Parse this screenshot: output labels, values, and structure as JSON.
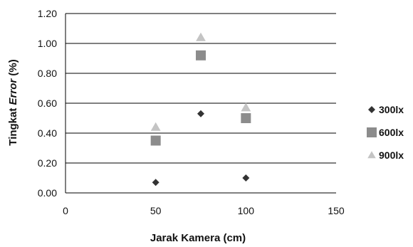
{
  "chart_data": {
    "type": "scatter",
    "title": "",
    "xlabel": "Jarak Kamera (cm)",
    "ylabel_parts": [
      "Tingkat ",
      "Error",
      " (%)"
    ],
    "xlim": [
      0,
      150
    ],
    "ylim": [
      0,
      1.2
    ],
    "xticks": [
      "0",
      "50",
      "100",
      "150"
    ],
    "yticks": [
      "0.00",
      "0.20",
      "0.40",
      "0.60",
      "0.80",
      "1.00",
      "1.20"
    ],
    "grid": "horizontal",
    "legend_position": "right",
    "series": [
      {
        "name": "300lx",
        "marker": "diamond",
        "color": "#333333",
        "x": [
          50,
          75,
          100
        ],
        "y": [
          0.07,
          0.53,
          0.1
        ]
      },
      {
        "name": "600lx",
        "marker": "square",
        "color": "#8c8c8c",
        "x": [
          50,
          75,
          100
        ],
        "y": [
          0.35,
          0.92,
          0.5
        ]
      },
      {
        "name": "900lx",
        "marker": "triangle",
        "color": "#c4c4c4",
        "x": [
          50,
          75,
          100
        ],
        "y": [
          0.44,
          1.04,
          0.57
        ]
      }
    ]
  }
}
